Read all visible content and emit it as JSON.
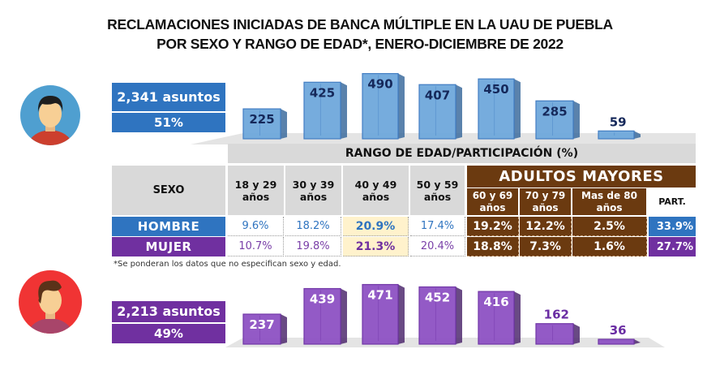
{
  "title": {
    "line1": "RECLAMACIONES INICIADAS DE BANCA MÚLTIPLE EN LA UAU DE PUEBLA",
    "line2": "POR SEXO Y RANGO DE EDAD*, ENERO-DICIEMBRE DE 2022"
  },
  "colors": {
    "male": "#2f74c0",
    "male_bar": "#6fa8dc",
    "female": "#7030a0",
    "female_bar": "#8e52c4",
    "adults_older": "#6b3a10",
    "highlight": "#fff2cc",
    "header_grey": "#d9d9d9"
  },
  "male": {
    "icon": "male-avatar-icon",
    "count_label": "2,341 asuntos",
    "share_label": "51%"
  },
  "female": {
    "icon": "female-avatar-icon",
    "count_label": "2,213 asuntos",
    "share_label": "49%"
  },
  "table": {
    "axis_title": "RANGO DE EDAD/PARTICIPACIÓN (%)",
    "sex_header": "SEXO",
    "age_headers": [
      {
        "l1": "18 y 29",
        "l2": "años"
      },
      {
        "l1": "30 y 39",
        "l2": "años"
      },
      {
        "l1": "40 y 49",
        "l2": "años"
      },
      {
        "l1": "50 y 59",
        "l2": "años"
      }
    ],
    "adults_title": "ADULTOS MAYORES",
    "adult_headers": [
      {
        "l1": "60 y 69",
        "l2": "años"
      },
      {
        "l1": "70 y 79",
        "l2": "años"
      },
      {
        "l1": "Mas de 80",
        "l2": "años"
      }
    ],
    "part_header": "PART.",
    "rows": [
      {
        "label": "HOMBRE",
        "values": [
          "9.6%",
          "18.2%",
          "20.9%",
          "17.4%",
          "19.2%",
          "12.2%",
          "2.5%"
        ],
        "part": "33.9%"
      },
      {
        "label": "MUJER",
        "values": [
          "10.7%",
          "19.8%",
          "21.3%",
          "20.4%",
          "18.8%",
          "7.3%",
          "1.6%"
        ],
        "part": "27.7%"
      }
    ],
    "note": "*Se ponderan los datos que no especifican sexo y edad."
  },
  "chart_data": {
    "type": "bar",
    "title": "RECLAMACIONES INICIADAS DE BANCA MÚLTIPLE EN LA UAU DE PUEBLA POR SEXO Y RANGO DE EDAD*, ENERO-DICIEMBRE DE 2022",
    "xlabel": "RANGO DE EDAD/PARTICIPACIÓN (%)",
    "ylabel": "",
    "categories": [
      "18 y 29 años",
      "30 y 39 años",
      "40 y 49 años",
      "50 y 59 años",
      "60 y 69 años",
      "70 y 79 años",
      "Mas de 80 años"
    ],
    "series": [
      {
        "name": "Hombre",
        "total": 2341,
        "share": "51%",
        "values": [
          225,
          425,
          490,
          407,
          450,
          285,
          59
        ]
      },
      {
        "name": "Mujer",
        "total": 2213,
        "share": "49%",
        "values": [
          237,
          439,
          471,
          452,
          416,
          162,
          36
        ]
      }
    ],
    "ylim": [
      0,
      500
    ],
    "grid": false,
    "legend": "none"
  }
}
